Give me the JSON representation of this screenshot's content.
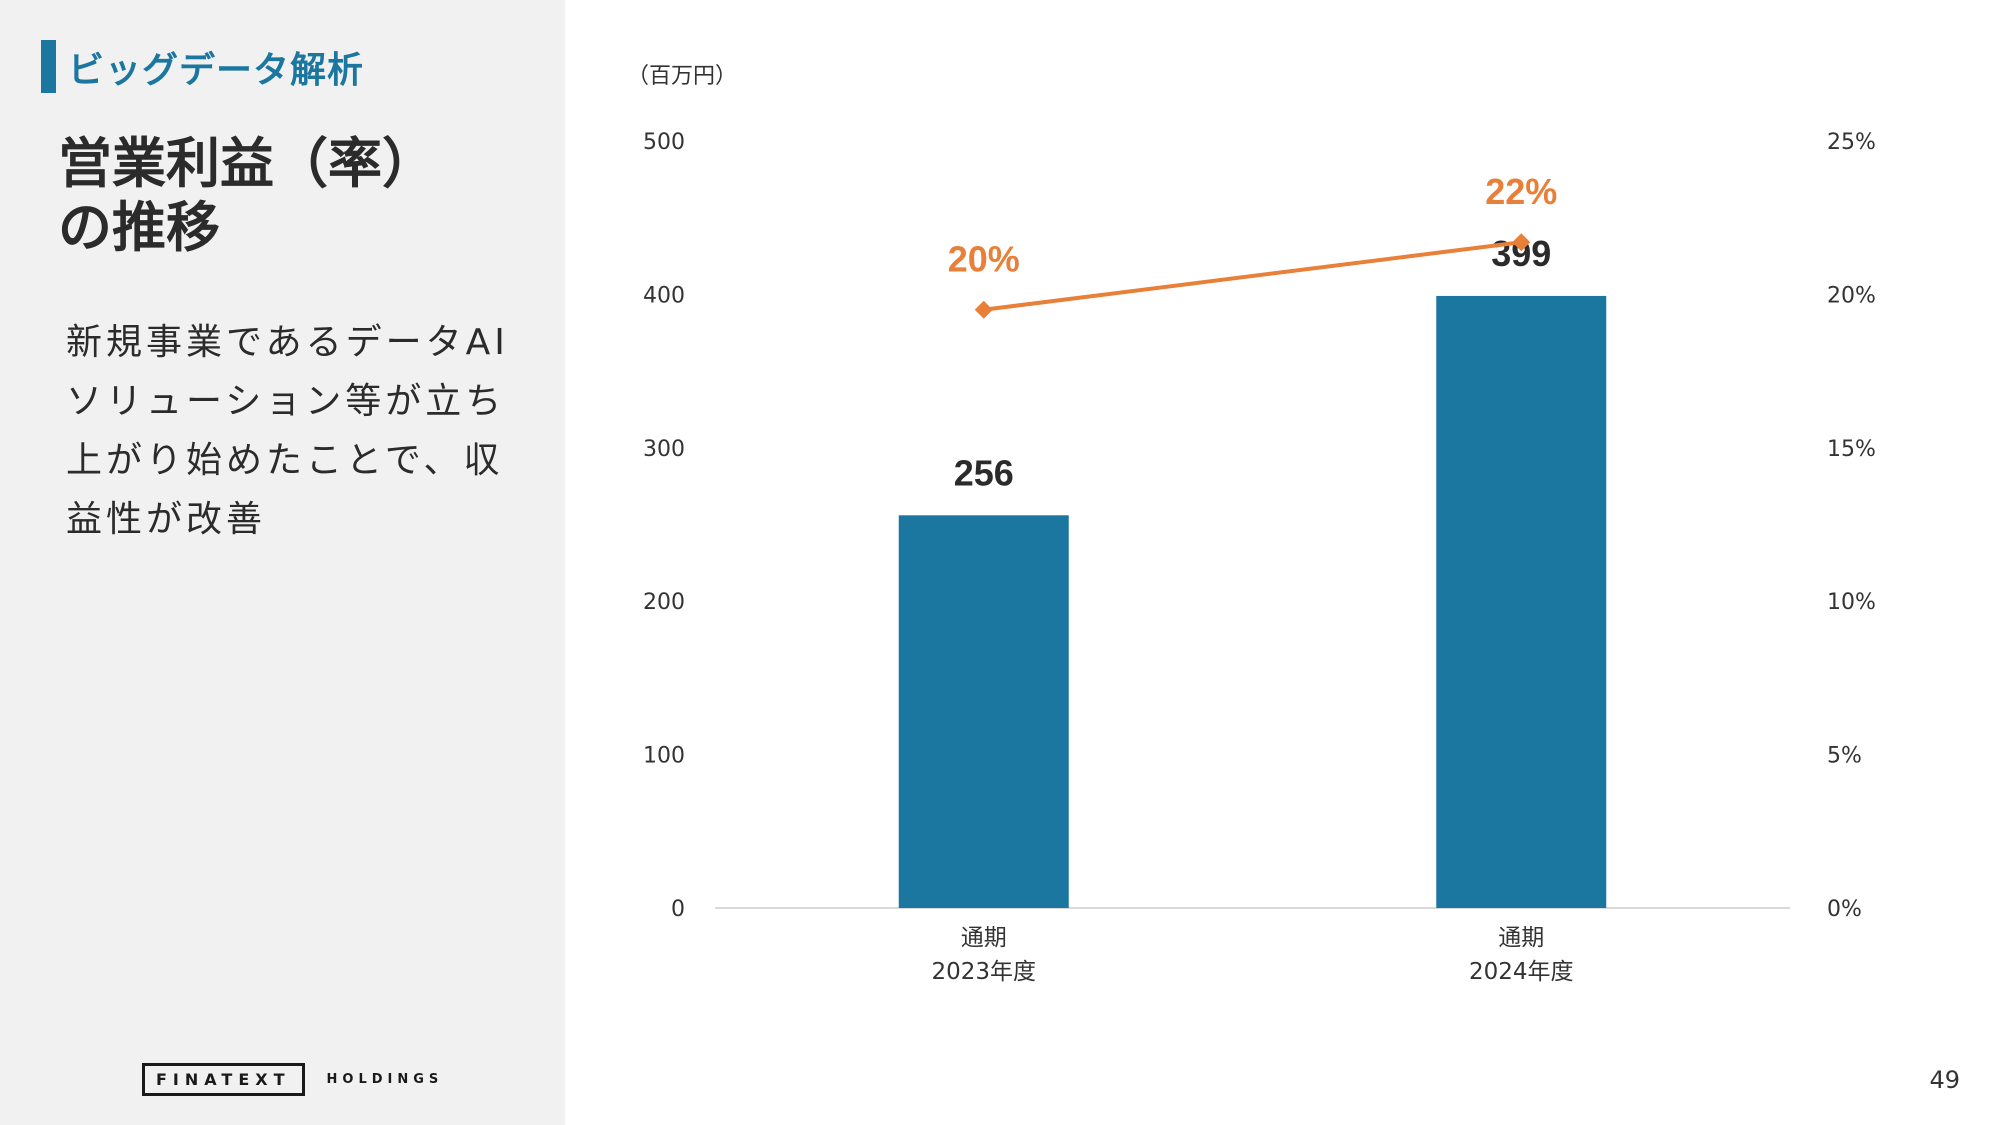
{
  "section": {
    "label": "ビッグデータ解析"
  },
  "title": {
    "line1": "営業利益（率）",
    "line2": "の推移"
  },
  "description": {
    "lines": [
      "新規事業であるデータAI",
      "ソリューション等が立ち",
      "上がり始めたことで、収",
      "益性が改善"
    ]
  },
  "logo": {
    "main": "FINATEXT",
    "sub": "HOLDINGS"
  },
  "page_number": "49",
  "colors": {
    "bar": "#1b779f",
    "line": "#e8803a",
    "accent": "#1b77a0"
  },
  "chart_data": {
    "type": "bar",
    "unit_label": "（百万円）",
    "categories": [
      {
        "line1": "通期",
        "line2": "2023年度"
      },
      {
        "line1": "通期",
        "line2": "2024年度"
      }
    ],
    "series": [
      {
        "type": "bar",
        "axis": "left",
        "values": [
          256,
          399
        ],
        "labels": [
          "256",
          "399"
        ]
      },
      {
        "type": "line",
        "axis": "right",
        "values": [
          19.5,
          21.7
        ],
        "labels": [
          "20%",
          "22%"
        ]
      }
    ],
    "y_left": {
      "min": 0,
      "max": 500,
      "ticks": [
        "0",
        "100",
        "200",
        "300",
        "400",
        "500"
      ]
    },
    "y_right": {
      "min": 0,
      "max": 25,
      "ticks": [
        "0%",
        "5%",
        "10%",
        "15%",
        "20%",
        "25%"
      ]
    },
    "grid": false,
    "legend": "none"
  }
}
